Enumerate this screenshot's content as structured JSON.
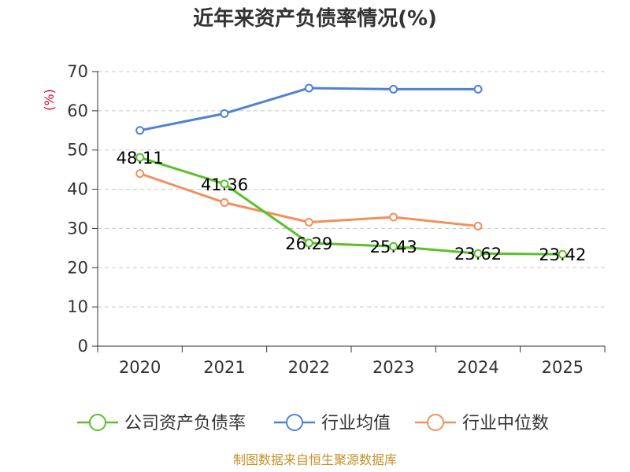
{
  "colors": {
    "company": "#5ac02a",
    "industry_avg": "#4f81d8",
    "industry_median": "#f28f5c",
    "axis": "#333333",
    "grid": "#c8c8c8",
    "ylabel": "#d9001b",
    "source": "#c4922c"
  },
  "chart_data": {
    "type": "line",
    "title": "近年来资产负债率情况(%)",
    "ylabel": "(%)",
    "xlabel": "",
    "categories": [
      "2020",
      "2021",
      "2022",
      "2023",
      "2024",
      "2025"
    ],
    "ylim": [
      0,
      70
    ],
    "yticks": [
      0,
      10,
      20,
      30,
      40,
      50,
      60,
      70
    ],
    "grid": true,
    "legend_position": "bottom",
    "series": [
      {
        "name": "公司资产负债率",
        "values": [
          48.11,
          41.36,
          26.29,
          25.43,
          23.62,
          23.42
        ],
        "data_labels": [
          "48.11",
          "41.36",
          "26.29",
          "25.43",
          "23.62",
          "23.42"
        ]
      },
      {
        "name": "行业均值",
        "values": [
          55,
          59.3,
          65.8,
          65.5,
          65.5,
          null
        ]
      },
      {
        "name": "行业中位数",
        "values": [
          44,
          36.6,
          31.6,
          32.9,
          30.6,
          null
        ]
      }
    ]
  },
  "source_note": "制图数据来自恒生聚源数据库"
}
